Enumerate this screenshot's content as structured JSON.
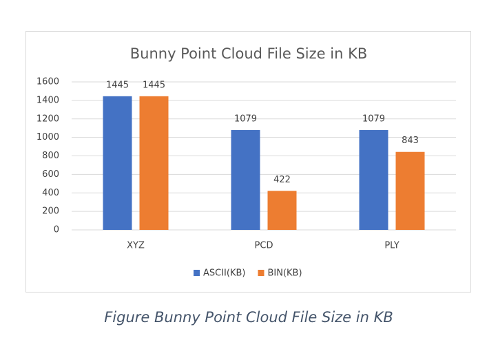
{
  "chart_data": {
    "type": "bar",
    "title": "Bunny Point Cloud File Size in KB",
    "categories": [
      "XYZ",
      "PCD",
      "PLY"
    ],
    "series": [
      {
        "name": "ASCII(KB)",
        "color": "#4472c4",
        "values": [
          1445,
          1079,
          1079
        ]
      },
      {
        "name": "BIN(KB)",
        "color": "#ed7d31",
        "values": [
          1445,
          422,
          843
        ]
      }
    ],
    "ylim": [
      0,
      1600
    ],
    "yticks": [
      0,
      200,
      400,
      600,
      800,
      1000,
      1200,
      1400,
      1600
    ],
    "grid": true,
    "legend": "bottom"
  },
  "caption": "Figure Bunny Point Cloud File Size in KB"
}
